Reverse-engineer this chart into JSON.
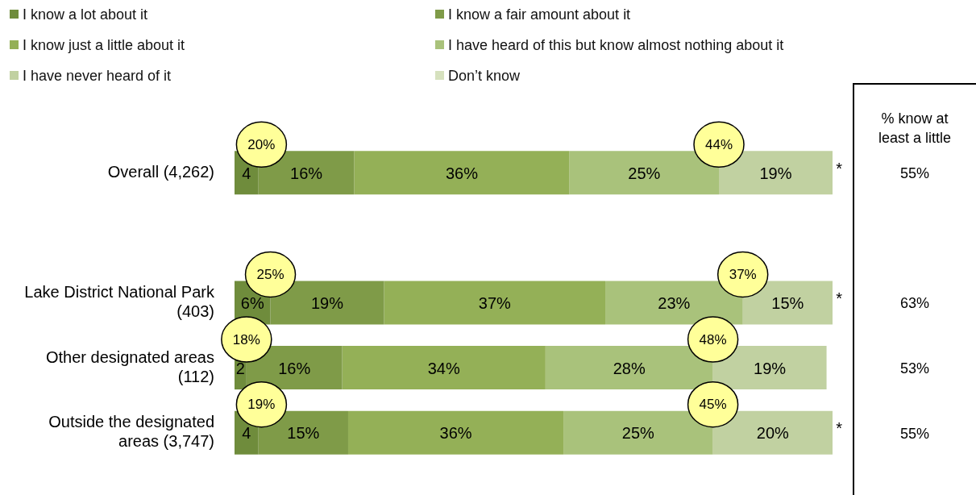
{
  "chart_data": {
    "type": "bar",
    "orientation": "horizontal",
    "stacked": true,
    "legend": "top",
    "tick_labels": "y",
    "xlim": [
      0,
      100
    ],
    "categories": [
      "Overall (4,262)",
      null,
      "Lake District National Park (403)",
      "Other designated areas (112)",
      "Outside the designated areas (3,747)"
    ],
    "series": [
      {
        "name": "I know a lot about it",
        "color": "#6f8c3c",
        "values": [
          4,
          null,
          6,
          2,
          4
        ],
        "value_labels": [
          "4",
          null,
          "6%",
          "2",
          "4"
        ]
      },
      {
        "name": "I know a fair amount about it",
        "color": "#7f9b48",
        "values": [
          16,
          null,
          19,
          16,
          15
        ],
        "value_labels": [
          "16%",
          null,
          "19%",
          "16%",
          "15%"
        ]
      },
      {
        "name": "I know just a little about it",
        "color": "#94b057",
        "values": [
          36,
          null,
          37,
          34,
          36
        ],
        "value_labels": [
          "36%",
          null,
          "37%",
          "34%",
          "36%"
        ]
      },
      {
        "name": "I have heard of this but know almost nothing about it",
        "color": "#a9c27b",
        "values": [
          25,
          null,
          23,
          28,
          25
        ],
        "value_labels": [
          "25%",
          null,
          "23%",
          "28%",
          "25%"
        ]
      },
      {
        "name": "I have never heard of it",
        "color": "#c1d1a1",
        "values": [
          19,
          null,
          15,
          19,
          20
        ],
        "value_labels": [
          "19%",
          null,
          "15%",
          "19%",
          "20%"
        ]
      },
      {
        "name": "Don’t know",
        "color": "#d6e1be",
        "values": [
          0.3,
          null,
          0.3,
          null,
          0.3
        ],
        "value_labels": [
          "*",
          null,
          "*",
          null,
          "*"
        ]
      }
    ],
    "annotations": [
      "% know at least a little",
      "55%",
      "63%",
      "53%",
      "55%",
      {
        "text": "20%",
        "x": 4.5,
        "y": "Overall (4,262)"
      },
      {
        "text": "44%",
        "x": 81,
        "y": "Overall (4,262)"
      },
      {
        "text": "25%",
        "x": 6,
        "y": "Lake District National Park (403)"
      },
      {
        "text": "37%",
        "x": 85,
        "y": "Lake District National Park (403)"
      },
      {
        "text": "18%",
        "x": 2,
        "y": "Other designated areas (112)"
      },
      {
        "text": "48%",
        "x": 80,
        "y": "Other designated areas (112)"
      },
      {
        "text": "19%",
        "x": 4.5,
        "y": "Outside the designated areas (3,747)"
      },
      {
        "text": "45%",
        "x": 80,
        "y": "Outside the designated areas (3,747)"
      }
    ]
  }
}
